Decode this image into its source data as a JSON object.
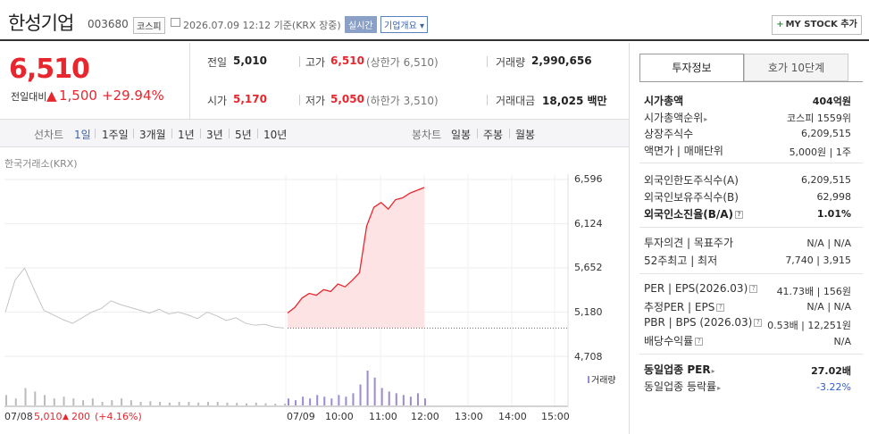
{
  "header": {
    "name": "한성기업",
    "code": "003680",
    "market": "코스피",
    "time": "2026.07.09 12:12 기준(KRX 장중)",
    "realtime": "실시간",
    "info_button": "기업개요",
    "mystock": "MY STOCK 추가"
  },
  "quote": {
    "price": "6,510",
    "change_label": "전일대비",
    "change": "1,500",
    "change_pct": "+29.94%",
    "prev_label": "전일",
    "prev": "5,010",
    "high_label": "고가",
    "high": "6,510",
    "upper_limit": "(상한가 6,510)",
    "volume_label": "거래량",
    "volume": "2,990,656",
    "open_label": "시가",
    "open": "5,170",
    "low_label": "저가",
    "low": "5,050",
    "lower_limit": "(하한가 3,510)",
    "amount_label": "거래대금",
    "amount": "18,025 백만"
  },
  "tabs": {
    "line_label": "선차트",
    "line_periods": [
      "1일",
      "1주일",
      "3개월",
      "1년",
      "3년",
      "5년",
      "10년"
    ],
    "candle_label": "봉차트",
    "candle_periods": [
      "일봉",
      "주봉",
      "월봉"
    ]
  },
  "chart_data": {
    "type": "line",
    "source": "한국거래소(KRX)",
    "y_ticks": [
      "6,596",
      "6,124",
      "5,652",
      "5,180",
      "4,708"
    ],
    "ylim": [
      4708,
      6596
    ],
    "x_ticks": [
      "07/09",
      "10:00",
      "11:00",
      "12:00",
      "13:00",
      "14:00",
      "15:00"
    ],
    "prev_day_label": "07/08",
    "prev_day_close": "5,010",
    "prev_day_change": "200",
    "prev_day_pct": "(+4.16%)",
    "volume_label": "거래량",
    "series": [
      {
        "name": "07/08",
        "values": [
          5180,
          5520,
          5650,
          5420,
          5200,
          5150,
          5100,
          5060,
          5120,
          5180,
          5220,
          5300,
          5260,
          5230,
          5200,
          5170,
          5210,
          5160,
          5180,
          5150,
          5110,
          5180,
          5140,
          5090,
          5120,
          5060,
          5040,
          5050,
          5020,
          5010
        ]
      },
      {
        "name": "07/09",
        "values": [
          5170,
          5230,
          5330,
          5380,
          5360,
          5420,
          5400,
          5480,
          5450,
          5520,
          5600,
          6100,
          6300,
          6350,
          6280,
          6380,
          6400,
          6450,
          6480,
          6510
        ]
      }
    ],
    "prev_close": 5010,
    "volume": [
      0.3,
      0.2,
      0.5,
      0.4,
      0.3,
      0.2,
      0.25,
      0.2,
      0.15,
      0.2,
      0.1,
      0.15,
      0.2,
      0.15,
      0.1,
      0.12,
      0.1,
      0.08,
      0.1,
      0.1,
      0.08,
      0.1,
      0.1,
      0.08,
      0.07,
      0.06,
      0.08,
      0.06,
      0.05,
      0.05,
      0.2,
      0.15,
      0.25,
      0.2,
      0.3,
      0.25,
      0.2,
      0.3,
      0.25,
      0.35,
      0.6,
      1.0,
      0.8,
      0.5,
      0.4,
      0.35,
      0.3,
      0.25,
      0.35,
      0.2
    ]
  },
  "panel": {
    "tab_on": "투자정보",
    "tab_off": "호가 10단계",
    "rows": [
      {
        "label": "시가총액",
        "value": "404억원"
      },
      {
        "label": "시가총액순위",
        "value": "코스피 1559위"
      },
      {
        "label": "상장주식수",
        "value": "6,209,515"
      },
      {
        "label": "액면가 | 매매단위",
        "value": "5,000원 | 1주"
      },
      {
        "label": "외국인한도주식수(A)",
        "value": "6,209,515"
      },
      {
        "label": "외국인보유주식수(B)",
        "value": "62,998"
      },
      {
        "label": "외국인소진율(B/A)",
        "value": "1.01%"
      },
      {
        "label": "투자의견 | 목표주가",
        "value": "N/A | N/A"
      },
      {
        "label": "52주최고 | 최저",
        "value": "7,740 | 3,915"
      },
      {
        "label": "PER | EPS(2026.03)",
        "value": "41.73배 | 156원"
      },
      {
        "label": "추정PER | EPS",
        "value": "N/A | N/A"
      },
      {
        "label": "PBR | BPS (2026.03)",
        "value": "0.53배 | 12,251원"
      },
      {
        "label": "배당수익률",
        "value": "N/A"
      },
      {
        "label": "동일업종 PER",
        "value": "27.02배"
      },
      {
        "label": "동일업종 등락률",
        "value": "-3.22%"
      }
    ]
  }
}
